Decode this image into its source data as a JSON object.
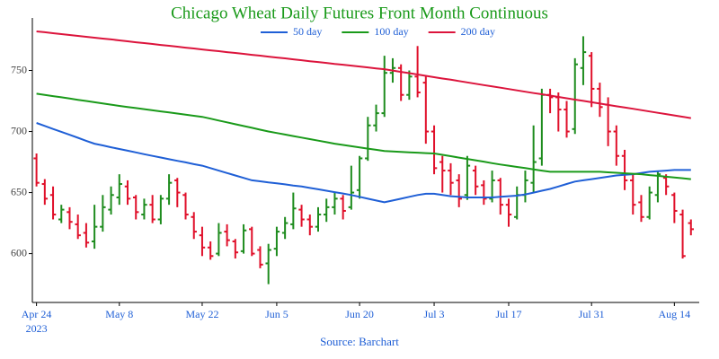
{
  "chart_data": {
    "type": "ohlc",
    "title": "Chicago Wheat Daily Futures Front Month Continuous",
    "source": "Source: Barchart",
    "x": [
      "2023-04-24",
      "2023-04-25",
      "2023-04-26",
      "2023-04-27",
      "2023-04-28",
      "2023-05-01",
      "2023-05-02",
      "2023-05-03",
      "2023-05-04",
      "2023-05-05",
      "2023-05-08",
      "2023-05-09",
      "2023-05-10",
      "2023-05-11",
      "2023-05-12",
      "2023-05-15",
      "2023-05-16",
      "2023-05-17",
      "2023-05-18",
      "2023-05-19",
      "2023-05-22",
      "2023-05-23",
      "2023-05-24",
      "2023-05-25",
      "2023-05-26",
      "2023-05-30",
      "2023-05-31",
      "2023-06-01",
      "2023-06-02",
      "2023-06-05",
      "2023-06-06",
      "2023-06-07",
      "2023-06-08",
      "2023-06-09",
      "2023-06-12",
      "2023-06-13",
      "2023-06-14",
      "2023-06-15",
      "2023-06-16",
      "2023-06-20",
      "2023-06-21",
      "2023-06-22",
      "2023-06-23",
      "2023-06-26",
      "2023-06-27",
      "2023-06-28",
      "2023-06-29",
      "2023-06-30",
      "2023-07-03",
      "2023-07-05",
      "2023-07-06",
      "2023-07-07",
      "2023-07-10",
      "2023-07-11",
      "2023-07-12",
      "2023-07-13",
      "2023-07-14",
      "2023-07-17",
      "2023-07-18",
      "2023-07-19",
      "2023-07-20",
      "2023-07-21",
      "2023-07-24",
      "2023-07-25",
      "2023-07-26",
      "2023-07-27",
      "2023-07-28",
      "2023-07-31",
      "2023-08-01",
      "2023-08-02",
      "2023-08-03",
      "2023-08-04",
      "2023-08-07",
      "2023-08-08",
      "2023-08-09",
      "2023-08-10",
      "2023-08-11",
      "2023-08-14",
      "2023-08-15",
      "2023-08-16"
    ],
    "ohlc": {
      "up_color": "#1e8c1e",
      "down_color": "#e0102a",
      "open": [
        678,
        657,
        648,
        628,
        634,
        624,
        617,
        610,
        622,
        636,
        646,
        655,
        646,
        632,
        640,
        628,
        645,
        660,
        648,
        630,
        615,
        605,
        600,
        618,
        610,
        602,
        620,
        603,
        592,
        604,
        617,
        624,
        636,
        628,
        622,
        632,
        638,
        645,
        638,
        652,
        678,
        705,
        715,
        748,
        752,
        730,
        745,
        740,
        700,
        675,
        668,
        660,
        648,
        668,
        656,
        645,
        660,
        640,
        630,
        648,
        658,
        678,
        730,
        728,
        718,
        702,
        752,
        762,
        735,
        722,
        700,
        680,
        660,
        642,
        630,
        648,
        662,
        648,
        632,
        625
      ],
      "high": [
        682,
        661,
        655,
        640,
        638,
        632,
        625,
        640,
        648,
        655,
        665,
        660,
        648,
        645,
        648,
        648,
        665,
        662,
        650,
        634,
        622,
        610,
        625,
        624,
        612,
        624,
        622,
        606,
        608,
        622,
        630,
        650,
        640,
        632,
        638,
        645,
        650,
        648,
        672,
        680,
        712,
        722,
        762,
        760,
        755,
        750,
        770,
        745,
        705,
        680,
        674,
        665,
        680,
        672,
        660,
        668,
        662,
        645,
        655,
        668,
        705,
        735,
        735,
        732,
        725,
        760,
        778,
        765,
        740,
        728,
        705,
        685,
        665,
        648,
        655,
        668,
        665,
        650,
        636,
        628
      ],
      "low": [
        655,
        640,
        628,
        625,
        620,
        612,
        605,
        604,
        618,
        632,
        640,
        640,
        628,
        628,
        625,
        624,
        640,
        638,
        628,
        612,
        598,
        595,
        598,
        606,
        596,
        600,
        598,
        588,
        575,
        598,
        612,
        620,
        622,
        615,
        618,
        626,
        632,
        628,
        636,
        645,
        676,
        700,
        712,
        740,
        725,
        726,
        728,
        690,
        665,
        650,
        648,
        638,
        644,
        648,
        640,
        642,
        632,
        622,
        628,
        642,
        650,
        672,
        715,
        700,
        695,
        698,
        738,
        720,
        712,
        688,
        672,
        652,
        632,
        626,
        628,
        642,
        648,
        625,
        596,
        615
      ],
      "close": [
        658,
        645,
        632,
        636,
        626,
        615,
        609,
        622,
        638,
        648,
        657,
        645,
        634,
        640,
        628,
        645,
        658,
        650,
        632,
        618,
        605,
        598,
        617,
        611,
        601,
        619,
        600,
        591,
        603,
        618,
        625,
        637,
        628,
        622,
        632,
        638,
        645,
        635,
        650,
        678,
        705,
        715,
        748,
        752,
        730,
        745,
        732,
        700,
        670,
        668,
        658,
        645,
        672,
        655,
        645,
        660,
        640,
        632,
        648,
        660,
        675,
        730,
        728,
        718,
        700,
        755,
        765,
        735,
        720,
        700,
        680,
        660,
        640,
        630,
        650,
        665,
        655,
        635,
        598,
        620
      ]
    },
    "series": [
      {
        "name": "50 day",
        "color": "#1f5fd6",
        "values": [
          707,
          704.6,
          702.1,
          699.7,
          697.3,
          694.9,
          692.4,
          690,
          688.6,
          687.1,
          685.7,
          684.3,
          682.9,
          681.4,
          680,
          678.7,
          677.3,
          676,
          674.7,
          673.3,
          672,
          670,
          668,
          666,
          664,
          662,
          660,
          659.2,
          658.3,
          657.5,
          656.7,
          655.8,
          655,
          653.8,
          652.7,
          651.5,
          650.3,
          649.2,
          648,
          646.5,
          645,
          643.5,
          642,
          643.5,
          645,
          646.5,
          648,
          649,
          649,
          648,
          647,
          646.5,
          646,
          646,
          646,
          646,
          646.5,
          647,
          647.5,
          648.5,
          650,
          651.5,
          653,
          655,
          657,
          659,
          660,
          661,
          662,
          663,
          664,
          664.5,
          665,
          666,
          667,
          667.5,
          668,
          668.5,
          668.5,
          668.5
        ]
      },
      {
        "name": "100 day",
        "color": "#1a9a1a",
        "values": [
          731,
          730,
          729,
          728,
          727,
          726,
          725,
          724,
          723,
          722,
          721,
          720.1,
          719.2,
          718.3,
          717.4,
          716.5,
          715.6,
          714.7,
          713.8,
          712.9,
          712,
          710.5,
          709,
          707.5,
          706,
          704.5,
          703,
          701.5,
          700,
          698.8,
          697.5,
          696.3,
          695,
          693.8,
          692.5,
          691.3,
          690,
          689,
          688,
          687,
          686,
          685,
          684,
          683.7,
          683.3,
          683,
          682.7,
          682.3,
          682,
          680.9,
          679.8,
          678.6,
          677.5,
          676.4,
          675.3,
          674.1,
          673,
          672,
          671,
          670,
          669,
          668,
          667,
          667,
          667,
          667,
          667,
          667,
          667,
          666.6,
          666.2,
          665.8,
          665.4,
          665,
          664.3,
          663.7,
          663,
          662.3,
          661.7,
          661
        ]
      },
      {
        "name": "200 day",
        "color": "#dc143c",
        "values": [
          782,
          781.3,
          780.5,
          779.8,
          779,
          778.3,
          777.6,
          776.8,
          776.1,
          775.4,
          774.6,
          773.9,
          773.1,
          772.4,
          771.7,
          770.9,
          770.2,
          769.5,
          768.7,
          768,
          767.2,
          766.5,
          765.8,
          765,
          764.3,
          763.6,
          762.8,
          762.1,
          761.3,
          760.6,
          759.9,
          759.1,
          758.4,
          757.6,
          756.9,
          756.2,
          755.4,
          754.7,
          754,
          753.2,
          752.5,
          751.7,
          751,
          749.9,
          748.8,
          747.8,
          746.7,
          745.6,
          744.5,
          743.4,
          742.4,
          741.3,
          740.2,
          739.1,
          738,
          737,
          735.9,
          734.8,
          733.7,
          732.6,
          731.5,
          730.5,
          729.4,
          728.3,
          727.2,
          726.1,
          725.1,
          724,
          722.9,
          721.8,
          720.7,
          719.7,
          718.6,
          717.5,
          716.4,
          715.3,
          714.3,
          713.2,
          712.1,
          711
        ]
      }
    ],
    "ylim": [
      560,
      793
    ],
    "yticks": [
      600,
      650,
      700,
      750
    ],
    "xticks": [
      {
        "value": "2023-04-24",
        "label": "Apr 24",
        "sublabel": "2023"
      },
      {
        "value": "2023-05-08",
        "label": "May 8"
      },
      {
        "value": "2023-05-22",
        "label": "May 22"
      },
      {
        "value": "2023-06-05",
        "label": "Jun 5"
      },
      {
        "value": "2023-06-20",
        "label": "Jun 20"
      },
      {
        "value": "2023-07-03",
        "label": "Jul 3"
      },
      {
        "value": "2023-07-17",
        "label": "Jul 17"
      },
      {
        "value": "2023-07-31",
        "label": "Jul 31"
      },
      {
        "value": "2023-08-14",
        "label": "Aug 14"
      }
    ],
    "legend": "top"
  }
}
